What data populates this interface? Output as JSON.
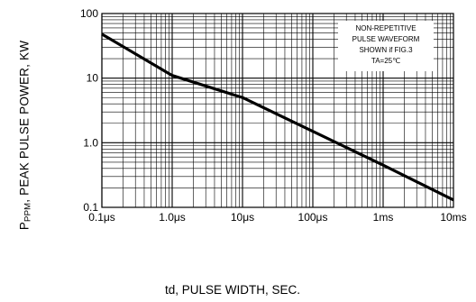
{
  "chart_data": {
    "type": "line",
    "xlabel": "td, PULSE WIDTH, SEC.",
    "ylabel": {
      "prefix": "P",
      "subscript": "PPM",
      "text": ", PEAK PULSE POWER, KW"
    },
    "xscale": "log",
    "yscale": "log",
    "xlim": [
      1e-07,
      0.01
    ],
    "ylim": [
      0.1,
      100
    ],
    "x_tick_labels": [
      "0.1μs",
      "1.0μs",
      "10μs",
      "100μs",
      "1ms",
      "10ms"
    ],
    "y_tick_labels": [
      "100",
      "10",
      "1.0",
      "0.1"
    ],
    "grid": true,
    "annotation": [
      "NON-REPETITIVE",
      "PULSE WAVEFORM",
      "SHOWN if FIG.3",
      "TA=25℃"
    ],
    "series": [
      {
        "x": [
          1e-07,
          1e-06,
          1e-05,
          0.0001,
          0.001,
          0.01
        ],
        "y": [
          48,
          11,
          5,
          1.5,
          0.45,
          0.13
        ]
      }
    ],
    "colors": {
      "grid": "#000000",
      "line": "#000000",
      "background": "#ffffff"
    }
  }
}
